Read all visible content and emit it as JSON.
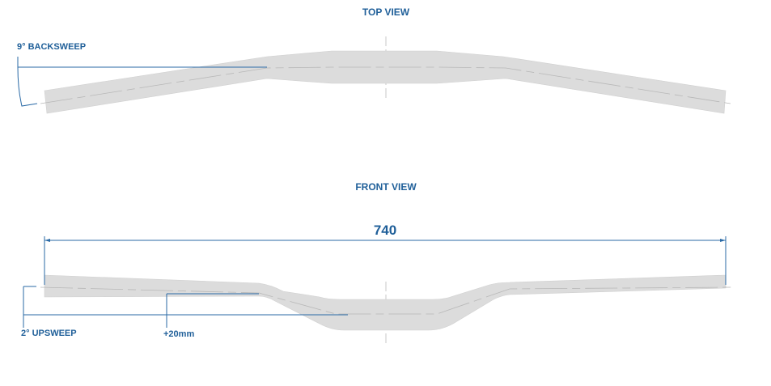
{
  "top_view": {
    "title": "TOP VIEW",
    "backsweep_label": "9° BACKSWEEP"
  },
  "front_view": {
    "title": "FRONT VIEW",
    "width_label": "740",
    "upsweep_label": "2° UPSWEEP",
    "rise_label": "+20mm"
  },
  "colors": {
    "annotation": "#1f5f99",
    "bar": "#dcdcdc"
  }
}
